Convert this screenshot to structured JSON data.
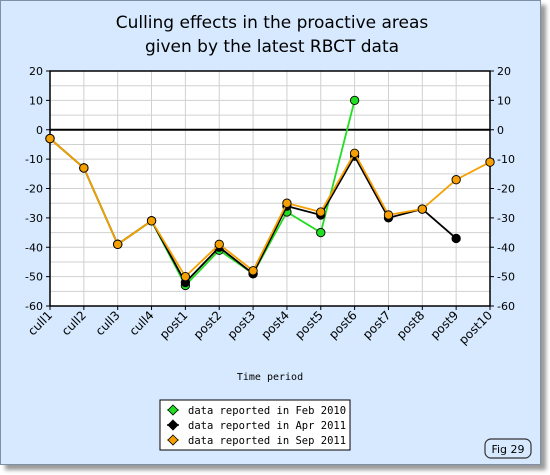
{
  "chart_data": {
    "type": "line",
    "title_lines": [
      "Culling effects in the proactive areas",
      "given by the latest RBCT data"
    ],
    "xlabel": "Time period",
    "ylabel": "",
    "categories": [
      "cull1",
      "cull2",
      "cull3",
      "cull4",
      "post1",
      "post2",
      "post3",
      "post4",
      "post5",
      "post6",
      "post7",
      "post8",
      "post9",
      "post10"
    ],
    "ylim": [
      -60,
      20
    ],
    "yticks": [
      20,
      10,
      0,
      -10,
      -20,
      -30,
      -40,
      -50,
      -60
    ],
    "grid": true,
    "legend_position": "bottom-center",
    "series": [
      {
        "name": "data reported in Feb 2010",
        "color": "#22dd22",
        "values": [
          -3,
          -13,
          -39,
          -31,
          -53,
          -41,
          -49,
          -28,
          -35,
          10,
          null,
          null,
          null,
          null
        ]
      },
      {
        "name": "data reported in Apr 2011",
        "color": "#000000",
        "values": [
          -3,
          -13,
          -39,
          -31,
          -52,
          -40,
          -49,
          -26,
          -29,
          -9,
          -30,
          -27,
          -37,
          null
        ]
      },
      {
        "name": "data reported in Sep 2011",
        "color": "#f5a000",
        "values": [
          -3,
          -13,
          -39,
          -31,
          -50,
          -39,
          -48,
          -25,
          -28,
          -8,
          -29,
          -27,
          -17,
          -11
        ]
      }
    ]
  },
  "badge": {
    "label": "Fig 29"
  }
}
